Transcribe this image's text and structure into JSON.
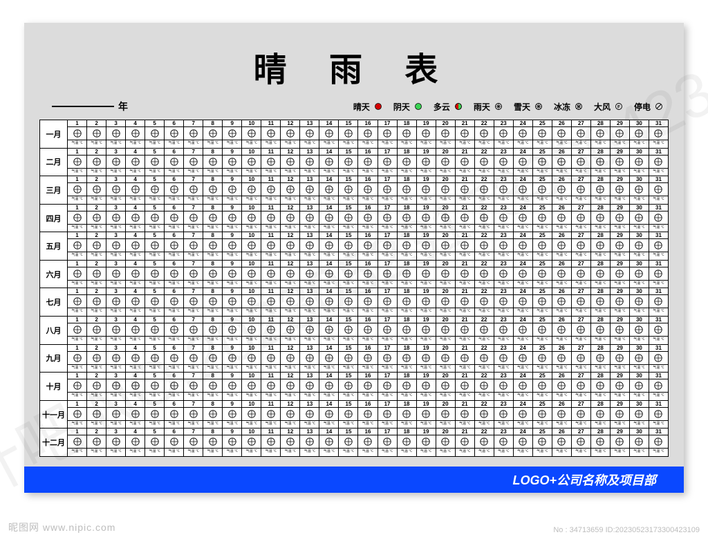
{
  "title": "晴 雨 表",
  "year_suffix": "年",
  "legend": [
    {
      "label": "晴天",
      "icon": "sunny"
    },
    {
      "label": "阴天",
      "icon": "overcast"
    },
    {
      "label": "多云",
      "icon": "cloudy"
    },
    {
      "label": "雨天",
      "icon": "rain"
    },
    {
      "label": "雪天",
      "icon": "snow"
    },
    {
      "label": "冰冻",
      "icon": "freeze"
    },
    {
      "label": "大风",
      "icon": "wind"
    },
    {
      "label": "停电",
      "icon": "poweroff"
    }
  ],
  "legend_colors": {
    "sunny": "#d40000",
    "overcast": "#39d353",
    "cloudy_left": "#d40000",
    "cloudy_right": "#39d353",
    "stroke": "#000000"
  },
  "months": [
    "一月",
    "二月",
    "三月",
    "四月",
    "五月",
    "六月",
    "七月",
    "八月",
    "九月",
    "十月",
    "十一月",
    "十二月"
  ],
  "days": 31,
  "cell_footer": "气温  ℃",
  "footer_text": "LOGO+公司名称及项目部",
  "watermark": {
    "site": "昵图网  www.nipic.com",
    "id": "No : 34713659 ID:20230523173300423109",
    "diag": "设计吧 NO.20230523173300423109"
  },
  "colors": {
    "page_bg": "#dcdcdc",
    "footer_bg": "#0a48ff",
    "border": "#000000"
  }
}
